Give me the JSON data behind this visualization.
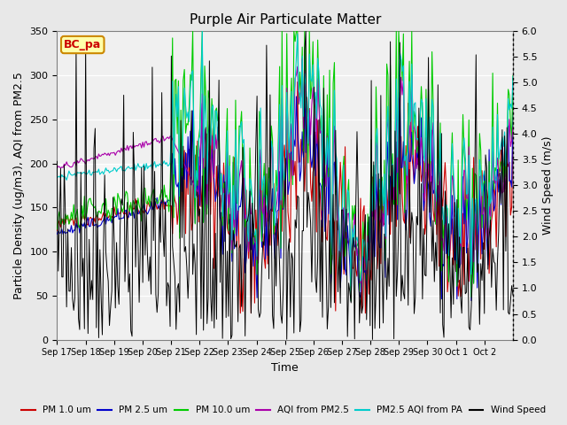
{
  "title": "Purple Air Particulate Matter",
  "xlabel": "Time",
  "ylabel_left": "Particle Density (ug/m3), AQI from PM2.5",
  "ylabel_right": "Wind Speed (m/s)",
  "ylim_left": [
    0,
    350
  ],
  "ylim_right": [
    0.0,
    6.0
  ],
  "yticks_left": [
    0,
    50,
    100,
    150,
    200,
    250,
    300,
    350
  ],
  "yticks_right": [
    0.0,
    0.5,
    1.0,
    1.5,
    2.0,
    2.5,
    3.0,
    3.5,
    4.0,
    4.5,
    5.0,
    5.5,
    6.0
  ],
  "xtick_labels": [
    "Sep 17",
    "Sep 18",
    "Sep 19",
    "Sep 20",
    "Sep 21",
    "Sep 22",
    "Sep 23",
    "Sep 24",
    "Sep 25",
    "Sep 26",
    "Sep 27",
    "Sep 28",
    "Sep 29",
    "Sep 30",
    "Oct 1",
    "Oct 2"
  ],
  "colors": {
    "PM1": "#cc0000",
    "PM25": "#0000cc",
    "PM10": "#00cc00",
    "AQI": "#aa00aa",
    "AQI_PA": "#00cccc",
    "Wind": "#000000"
  },
  "legend_labels": [
    "PM 1.0 um",
    "PM 2.5 um",
    "PM 10.0 um",
    "AQI from PM2.5",
    "PM2.5 AQI from PA",
    "Wind Speed"
  ],
  "annotation_text": "BC_pa",
  "background_color": "#e8e8e8",
  "plot_bg": "#f0f0f0"
}
